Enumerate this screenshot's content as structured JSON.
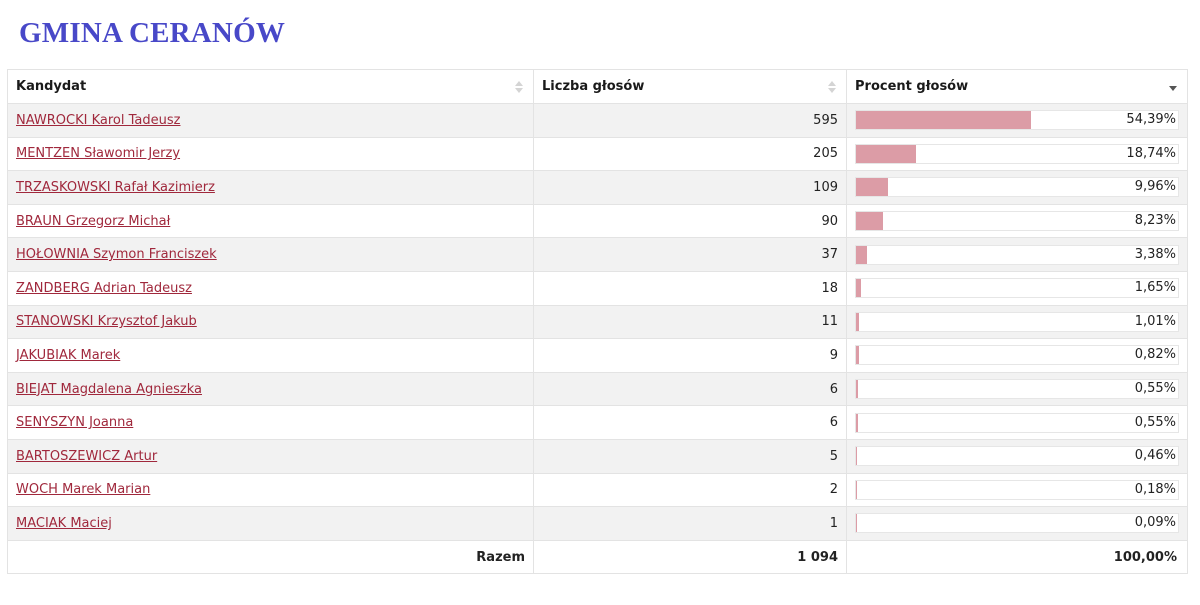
{
  "page_title": "GMINA CERANÓW",
  "table": {
    "headers": {
      "candidate": "Kandydat",
      "votes": "Liczba głosów",
      "percent": "Procent głosów"
    },
    "rows": [
      {
        "name": "NAWROCKI Karol Tadeusz",
        "votes": "595",
        "percent_label": "54,39%",
        "percent": 54.39
      },
      {
        "name": "MENTZEN Sławomir Jerzy",
        "votes": "205",
        "percent_label": "18,74%",
        "percent": 18.74
      },
      {
        "name": "TRZASKOWSKI Rafał Kazimierz",
        "votes": "109",
        "percent_label": "9,96%",
        "percent": 9.96
      },
      {
        "name": "BRAUN Grzegorz Michał",
        "votes": "90",
        "percent_label": "8,23%",
        "percent": 8.23
      },
      {
        "name": "HOŁOWNIA Szymon Franciszek",
        "votes": "37",
        "percent_label": "3,38%",
        "percent": 3.38
      },
      {
        "name": "ZANDBERG Adrian Tadeusz",
        "votes": "18",
        "percent_label": "1,65%",
        "percent": 1.65
      },
      {
        "name": "STANOWSKI Krzysztof Jakub",
        "votes": "11",
        "percent_label": "1,01%",
        "percent": 1.01
      },
      {
        "name": "JAKUBIAK Marek",
        "votes": "9",
        "percent_label": "0,82%",
        "percent": 0.82
      },
      {
        "name": "BIEJAT Magdalena Agnieszka",
        "votes": "6",
        "percent_label": "0,55%",
        "percent": 0.55
      },
      {
        "name": "SENYSZYN Joanna",
        "votes": "6",
        "percent_label": "0,55%",
        "percent": 0.55
      },
      {
        "name": "BARTOSZEWICZ Artur",
        "votes": "5",
        "percent_label": "0,46%",
        "percent": 0.46
      },
      {
        "name": "WOCH Marek Marian",
        "votes": "2",
        "percent_label": "0,18%",
        "percent": 0.18
      },
      {
        "name": "MACIAK Maciej",
        "votes": "1",
        "percent_label": "0,09%",
        "percent": 0.09
      }
    ],
    "footer": {
      "label": "Razem",
      "votes_total": "1 094",
      "percent_total": "100,00%"
    }
  },
  "colors": {
    "title": "#4848c8",
    "link": "#a0283c",
    "bar_fill": "#dc9ca6",
    "row_stripe": "#f2f2f2"
  },
  "icons": {
    "sort_neutral": "sort-both-icon",
    "sort_active": "sort-desc-icon"
  }
}
